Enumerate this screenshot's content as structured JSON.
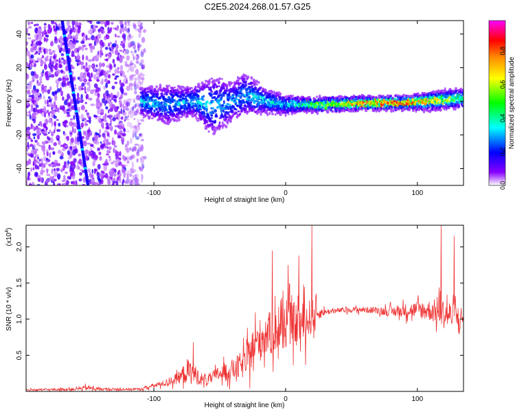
{
  "title": "C2E5.2024.268.01.57.G25",
  "chart_data": [
    {
      "type": "heatmap",
      "xlabel": "Height of straight line (km)",
      "ylabel": "Frequency (Hz)",
      "xlim": [
        -197,
        135
      ],
      "ylim": [
        -50,
        48
      ],
      "x_ticks": [
        -100,
        0,
        100
      ],
      "x_tick_labels": [
        "-100",
        "0",
        "100"
      ],
      "y_ticks": [
        -40,
        -20,
        0,
        20,
        40
      ],
      "y_tick_labels": [
        "-40",
        "-20",
        "0",
        "20",
        "40"
      ],
      "colorbar": {
        "label": "Normalized spectral amplitude",
        "range": [
          0,
          0.98
        ],
        "ticks": [
          0.0,
          0.2,
          0.4,
          0.6,
          0.8
        ],
        "tick_labels": [
          "0.0",
          "0.2",
          "0.4",
          "0.6",
          "0.8"
        ],
        "colors": [
          "#ffffff",
          "#8800ff",
          "#0000ff",
          "#00ffff",
          "#00ff00",
          "#ffff00",
          "#ff8800",
          "#ff0000",
          "#ff00ff"
        ]
      },
      "features": {
        "noise_region_x": [
          -197,
          -107
        ],
        "diagonal_line": {
          "from": [
            -170,
            50
          ],
          "to": [
            -150,
            -50
          ]
        },
        "signal_band": [
          {
            "x": -110,
            "center": 0,
            "halfwidth": 6,
            "amplitude": 0.35
          },
          {
            "x": -90,
            "center": -2,
            "halfwidth": 8,
            "amplitude": 0.3
          },
          {
            "x": -70,
            "center": 0,
            "halfwidth": 6,
            "amplitude": 0.35
          },
          {
            "x": -55,
            "center": -3,
            "halfwidth": 12,
            "amplitude": 0.35
          },
          {
            "x": -40,
            "center": 0,
            "halfwidth": 8,
            "amplitude": 0.3
          },
          {
            "x": -30,
            "center": 4,
            "halfwidth": 9,
            "amplitude": 0.35
          },
          {
            "x": -15,
            "center": 0,
            "halfwidth": 5,
            "amplitude": 0.4
          },
          {
            "x": 0,
            "center": -2,
            "halfwidth": 4,
            "amplitude": 0.35
          },
          {
            "x": 10,
            "center": -2,
            "halfwidth": 3,
            "amplitude": 0.5
          },
          {
            "x": 30,
            "center": -2,
            "halfwidth": 3,
            "amplitude": 0.6
          },
          {
            "x": 60,
            "center": -1,
            "halfwidth": 3,
            "amplitude": 0.8
          },
          {
            "x": 90,
            "center": -1,
            "halfwidth": 3,
            "amplitude": 0.85
          },
          {
            "x": 110,
            "center": 0,
            "halfwidth": 4,
            "amplitude": 0.7
          },
          {
            "x": 135,
            "center": 2,
            "halfwidth": 4,
            "amplitude": 0.5
          }
        ]
      }
    },
    {
      "type": "line",
      "xlabel": "Height of straight line (km)",
      "ylabel": "SNR (10 * v/v)",
      "multiplier_label": "(x10",
      "multiplier_exp": "4",
      "multiplier_close": ")",
      "xlim": [
        -197,
        135
      ],
      "ylim": [
        0,
        23000
      ],
      "x_ticks": [
        -100,
        0,
        100
      ],
      "x_tick_labels": [
        "-100",
        "0",
        "100"
      ],
      "y_ticks": [
        5000,
        10000,
        15000,
        20000
      ],
      "y_tick_labels": [
        "0.5",
        "1.0",
        "1.5",
        "2.0"
      ],
      "series": [
        {
          "color": "#ee3333",
          "envelope": {
            "x": [
              -197,
              -160,
              -150,
              -140,
              -110,
              -100,
              -90,
              -80,
              -75,
              -70,
              -65,
              -60,
              -50,
              -40,
              -30,
              -25,
              -20,
              -15,
              -10,
              -5,
              0,
              5,
              10,
              15,
              20,
              25,
              30,
              40,
              50,
              60,
              70,
              80,
              90,
              100,
              110,
              115,
              120,
              125,
              130,
              135
            ],
            "baseline": [
              200,
              300,
              500,
              300,
              300,
              800,
              1200,
              2000,
              2800,
              2500,
              1800,
              1500,
              2500,
              3000,
              4000,
              6000,
              7000,
              8000,
              8000,
              8500,
              9000,
              9500,
              9000,
              9500,
              10500,
              10800,
              11000,
              11200,
              11300,
              11300,
              11200,
              11000,
              11200,
              11300,
              11200,
              11000,
              10800,
              10500,
              10200,
              10000
            ],
            "spread": [
              200,
              300,
              600,
              300,
              300,
              500,
              800,
              1500,
              3000,
              2500,
              1500,
              1200,
              1800,
              2500,
              3500,
              4500,
              5000,
              5000,
              5000,
              5000,
              5000,
              5000,
              5000,
              5000,
              4000,
              1500,
              700,
              600,
              600,
              700,
              800,
              1200,
              1500,
              2000,
              2500,
              3000,
              3500,
              3500,
              3000,
              3000
            ]
          },
          "spikes": [
            {
              "x": -70,
              "y": 6800
            },
            {
              "x": -10,
              "y": 19500
            },
            {
              "x": 2,
              "y": 17500
            },
            {
              "x": 10,
              "y": 18800
            },
            {
              "x": 20,
              "y": 23000
            },
            {
              "x": 118,
              "y": 23000
            },
            {
              "x": 128,
              "y": 21500
            }
          ]
        }
      ]
    }
  ]
}
